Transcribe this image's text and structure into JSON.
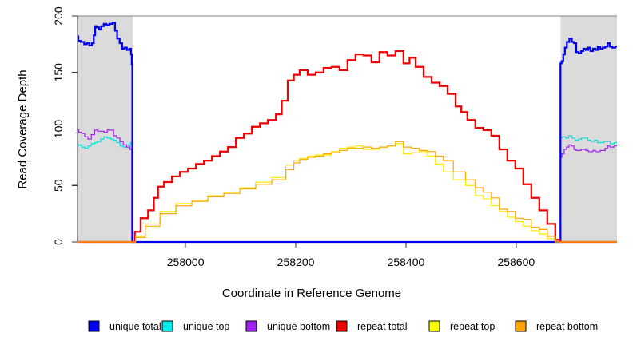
{
  "chart_data": {
    "type": "line",
    "title": "",
    "xlabel": "Coordinate in Reference Genome",
    "ylabel": "Read Coverage Depth",
    "xlim": [
      257804,
      258783
    ],
    "ylim": [
      0,
      200
    ],
    "x_ticks": [
      258000,
      258200,
      258400,
      258600
    ],
    "y_ticks": [
      0,
      50,
      100,
      150,
      200
    ],
    "grid": false,
    "legend_position": "bottom",
    "top_border_value": 200,
    "shade_color": "#dbdbdb",
    "axis_color": "#333333",
    "top_border_color": "#808080",
    "shaded_regions": [
      {
        "x0": 257804,
        "x1": 257904
      },
      {
        "x0": 258681,
        "x1": 258783
      }
    ],
    "series": [
      {
        "name": "unique top",
        "color": "#00e0e0",
        "line_width": 1.2,
        "points": [
          [
            257804,
            85
          ],
          [
            257809,
            86
          ],
          [
            257814,
            84
          ],
          [
            257820,
            83
          ],
          [
            257826,
            85
          ],
          [
            257832,
            87
          ],
          [
            257838,
            88
          ],
          [
            257843,
            89
          ],
          [
            257849,
            91
          ],
          [
            257855,
            93
          ],
          [
            257861,
            92
          ],
          [
            257867,
            91
          ],
          [
            257872,
            90
          ],
          [
            257878,
            88
          ],
          [
            257884,
            85
          ],
          [
            257890,
            84
          ],
          [
            257896,
            86
          ],
          [
            257899,
            83
          ],
          [
            257901,
            88
          ],
          [
            257904,
            86
          ],
          [
            257904,
            0
          ],
          [
            258680,
            0
          ],
          [
            258681,
            92
          ],
          [
            258687,
            93
          ],
          [
            258693,
            92
          ],
          [
            258698,
            94
          ],
          [
            258704,
            92
          ],
          [
            258710,
            90
          ],
          [
            258716,
            91
          ],
          [
            258721,
            92
          ],
          [
            258727,
            92
          ],
          [
            258733,
            90
          ],
          [
            258739,
            89
          ],
          [
            258745,
            90
          ],
          [
            258750,
            88
          ],
          [
            258756,
            88
          ],
          [
            258762,
            89
          ],
          [
            258768,
            89
          ],
          [
            258774,
            87
          ],
          [
            258783,
            88
          ]
        ]
      },
      {
        "name": "unique bottom",
        "color": "#a020f0",
        "line_width": 1.2,
        "points": [
          [
            257804,
            99
          ],
          [
            257809,
            97
          ],
          [
            257814,
            96
          ],
          [
            257820,
            93
          ],
          [
            257826,
            91
          ],
          [
            257832,
            95
          ],
          [
            257838,
            99
          ],
          [
            257843,
            98
          ],
          [
            257849,
            98
          ],
          [
            257855,
            97
          ],
          [
            257861,
            99
          ],
          [
            257867,
            99
          ],
          [
            257872,
            94
          ],
          [
            257878,
            92
          ],
          [
            257884,
            89
          ],
          [
            257890,
            86
          ],
          [
            257896,
            84
          ],
          [
            257901,
            82
          ],
          [
            257904,
            0
          ],
          [
            258680,
            0
          ],
          [
            258681,
            75
          ],
          [
            258685,
            78
          ],
          [
            258689,
            82
          ],
          [
            258694,
            84
          ],
          [
            258698,
            86
          ],
          [
            258703,
            85
          ],
          [
            258707,
            82
          ],
          [
            258711,
            81
          ],
          [
            258716,
            81
          ],
          [
            258720,
            82
          ],
          [
            258724,
            82
          ],
          [
            258729,
            81
          ],
          [
            258733,
            80
          ],
          [
            258737,
            80
          ],
          [
            258742,
            81
          ],
          [
            258746,
            80
          ],
          [
            258750,
            80
          ],
          [
            258755,
            81
          ],
          [
            258759,
            81
          ],
          [
            258764,
            83
          ],
          [
            258768,
            85
          ],
          [
            258772,
            84
          ],
          [
            258783,
            85
          ]
        ]
      },
      {
        "name": "unique total",
        "color": "#0000ee",
        "line_width": 2.25,
        "points": [
          [
            257804,
            182
          ],
          [
            257807,
            178
          ],
          [
            257813,
            177
          ],
          [
            257819,
            175
          ],
          [
            257823,
            176
          ],
          [
            257828,
            174
          ],
          [
            257832,
            176
          ],
          [
            257835,
            183
          ],
          [
            257837,
            191
          ],
          [
            257841,
            190
          ],
          [
            257845,
            188
          ],
          [
            257849,
            191
          ],
          [
            257854,
            193
          ],
          [
            257859,
            192
          ],
          [
            257865,
            193
          ],
          [
            257870,
            194
          ],
          [
            257874,
            187
          ],
          [
            257878,
            180
          ],
          [
            257883,
            176
          ],
          [
            257887,
            171
          ],
          [
            257891,
            172
          ],
          [
            257896,
            170
          ],
          [
            257900,
            171
          ],
          [
            257902,
            166
          ],
          [
            257903,
            157
          ],
          [
            257904,
            0
          ],
          [
            258680,
            0
          ],
          [
            258681,
            158
          ],
          [
            258684,
            160
          ],
          [
            258687,
            166
          ],
          [
            258690,
            172
          ],
          [
            258694,
            177
          ],
          [
            258699,
            180
          ],
          [
            258703,
            177
          ],
          [
            258707,
            176
          ],
          [
            258711,
            168
          ],
          [
            258716,
            167
          ],
          [
            258720,
            169
          ],
          [
            258724,
            171
          ],
          [
            258729,
            170
          ],
          [
            258733,
            172
          ],
          [
            258737,
            169
          ],
          [
            258742,
            171
          ],
          [
            258746,
            170
          ],
          [
            258750,
            173
          ],
          [
            258755,
            171
          ],
          [
            258759,
            172
          ],
          [
            258764,
            173
          ],
          [
            258768,
            176
          ],
          [
            258772,
            173
          ],
          [
            258777,
            172
          ],
          [
            258783,
            173
          ]
        ]
      },
      {
        "name": "repeat total",
        "color": "#ee0000",
        "line_width": 2.25,
        "points": [
          [
            257804,
            0
          ],
          [
            257904,
            0
          ],
          [
            257912,
            9
          ],
          [
            257925,
            21
          ],
          [
            257939,
            28
          ],
          [
            257946,
            39
          ],
          [
            257954,
            49
          ],
          [
            257968,
            53
          ],
          [
            257983,
            58
          ],
          [
            257997,
            62
          ],
          [
            258012,
            65
          ],
          [
            258026,
            69
          ],
          [
            258041,
            72
          ],
          [
            258055,
            76
          ],
          [
            258070,
            80
          ],
          [
            258084,
            84
          ],
          [
            258099,
            92
          ],
          [
            258113,
            96
          ],
          [
            258128,
            102
          ],
          [
            258142,
            105
          ],
          [
            258157,
            108
          ],
          [
            258171,
            113
          ],
          [
            258178,
            125
          ],
          [
            258193,
            143
          ],
          [
            258200,
            148
          ],
          [
            258214,
            152
          ],
          [
            258229,
            148
          ],
          [
            258243,
            150
          ],
          [
            258258,
            154
          ],
          [
            258272,
            155
          ],
          [
            258287,
            152
          ],
          [
            258301,
            161
          ],
          [
            258316,
            166
          ],
          [
            258330,
            165
          ],
          [
            258345,
            159
          ],
          [
            258359,
            168
          ],
          [
            258374,
            165
          ],
          [
            258388,
            169
          ],
          [
            258403,
            158
          ],
          [
            258410,
            163
          ],
          [
            258425,
            155
          ],
          [
            258439,
            146
          ],
          [
            258454,
            141
          ],
          [
            258468,
            138
          ],
          [
            258483,
            131
          ],
          [
            258497,
            120
          ],
          [
            258504,
            115
          ],
          [
            258519,
            108
          ],
          [
            258533,
            101
          ],
          [
            258548,
            99
          ],
          [
            258562,
            94
          ],
          [
            258577,
            82
          ],
          [
            258591,
            72
          ],
          [
            258606,
            65
          ],
          [
            258620,
            51
          ],
          [
            258635,
            39
          ],
          [
            258649,
            28
          ],
          [
            258664,
            16
          ],
          [
            258678,
            2
          ],
          [
            258681,
            0
          ],
          [
            258783,
            0
          ]
        ]
      },
      {
        "name": "repeat top",
        "color": "#ffe800",
        "line_width": 1.2,
        "points": [
          [
            257804,
            0
          ],
          [
            257904,
            0
          ],
          [
            257915,
            5
          ],
          [
            257939,
            16
          ],
          [
            257968,
            27
          ],
          [
            257997,
            34
          ],
          [
            258026,
            37
          ],
          [
            258055,
            41
          ],
          [
            258084,
            44
          ],
          [
            258113,
            48
          ],
          [
            258142,
            53
          ],
          [
            258171,
            57
          ],
          [
            258193,
            68
          ],
          [
            258200,
            72
          ],
          [
            258214,
            74
          ],
          [
            258229,
            76
          ],
          [
            258243,
            77
          ],
          [
            258258,
            77
          ],
          [
            258272,
            80
          ],
          [
            258287,
            83
          ],
          [
            258301,
            84
          ],
          [
            258316,
            85
          ],
          [
            258330,
            82
          ],
          [
            258345,
            82
          ],
          [
            258359,
            84
          ],
          [
            258374,
            85
          ],
          [
            258388,
            87
          ],
          [
            258403,
            78
          ],
          [
            258417,
            79
          ],
          [
            258432,
            80
          ],
          [
            258446,
            76
          ],
          [
            258461,
            69
          ],
          [
            258475,
            62
          ],
          [
            258497,
            55
          ],
          [
            258519,
            50
          ],
          [
            258533,
            41
          ],
          [
            258548,
            38
          ],
          [
            258562,
            32
          ],
          [
            258577,
            27
          ],
          [
            258591,
            22
          ],
          [
            258606,
            18
          ],
          [
            258620,
            14
          ],
          [
            258635,
            10
          ],
          [
            258649,
            7
          ],
          [
            258664,
            3
          ],
          [
            258678,
            0
          ],
          [
            258783,
            0
          ]
        ]
      },
      {
        "name": "repeat bottom",
        "color": "#ffa500",
        "line_width": 1.2,
        "points": [
          [
            257804,
            0
          ],
          [
            257904,
            0
          ],
          [
            257915,
            4
          ],
          [
            257939,
            14
          ],
          [
            257968,
            25
          ],
          [
            257997,
            32
          ],
          [
            258026,
            36
          ],
          [
            258055,
            40
          ],
          [
            258084,
            43
          ],
          [
            258113,
            47
          ],
          [
            258142,
            51
          ],
          [
            258171,
            55
          ],
          [
            258193,
            64
          ],
          [
            258200,
            70
          ],
          [
            258214,
            73
          ],
          [
            258229,
            75
          ],
          [
            258243,
            76
          ],
          [
            258258,
            78
          ],
          [
            258272,
            79
          ],
          [
            258287,
            81
          ],
          [
            258301,
            83
          ],
          [
            258316,
            83
          ],
          [
            258330,
            84
          ],
          [
            258345,
            83
          ],
          [
            258359,
            84
          ],
          [
            258374,
            85
          ],
          [
            258388,
            89
          ],
          [
            258403,
            84
          ],
          [
            258417,
            83
          ],
          [
            258432,
            81
          ],
          [
            258446,
            80
          ],
          [
            258461,
            76
          ],
          [
            258475,
            72
          ],
          [
            258497,
            62
          ],
          [
            258519,
            55
          ],
          [
            258533,
            48
          ],
          [
            258548,
            44
          ],
          [
            258562,
            39
          ],
          [
            258577,
            29
          ],
          [
            258591,
            27
          ],
          [
            258606,
            21
          ],
          [
            258620,
            20
          ],
          [
            258635,
            13
          ],
          [
            258649,
            11
          ],
          [
            258664,
            5
          ],
          [
            258678,
            0
          ],
          [
            258783,
            0
          ]
        ]
      }
    ]
  },
  "legend": {
    "items": [
      {
        "label": "unique total",
        "color": "#0000ee"
      },
      {
        "label": "unique top",
        "color": "#00eeee"
      },
      {
        "label": "unique bottom",
        "color": "#a020f0"
      },
      {
        "label": "repeat total",
        "color": "#ee0000"
      },
      {
        "label": "repeat top",
        "color": "#ffff00"
      },
      {
        "label": "repeat bottom",
        "color": "#ffa500"
      }
    ]
  }
}
